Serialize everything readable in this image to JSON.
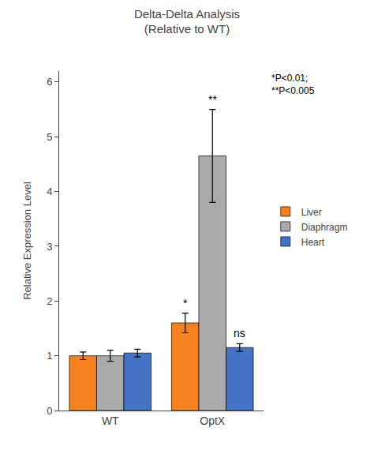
{
  "chart_data": {
    "type": "bar",
    "title": "Delta-Delta Analysis\n(Relative to WT)",
    "ylabel": "Relative Expression Level",
    "categories": [
      "WT",
      "OptX"
    ],
    "series": [
      {
        "name": "Liver",
        "color": "#F5821F",
        "values": [
          1.0,
          1.6
        ],
        "errors": [
          0.07,
          0.18
        ],
        "annotations": [
          null,
          "*"
        ]
      },
      {
        "name": "Diaphragm",
        "color": "#AAAAAA",
        "values": [
          1.0,
          4.65
        ],
        "errors": [
          0.1,
          0.85
        ],
        "annotations": [
          null,
          "**"
        ]
      },
      {
        "name": "Heart",
        "color": "#4472C4",
        "values": [
          1.05,
          1.15
        ],
        "errors": [
          0.07,
          0.07
        ],
        "annotations": [
          null,
          "ns"
        ]
      }
    ],
    "ylim": [
      0,
      6.2
    ],
    "yticks": [
      0,
      1,
      2,
      3,
      4,
      5,
      6
    ],
    "annotations": [
      "*P<0.01;\n**P<0.005"
    ],
    "grid": false,
    "legend": "right"
  }
}
